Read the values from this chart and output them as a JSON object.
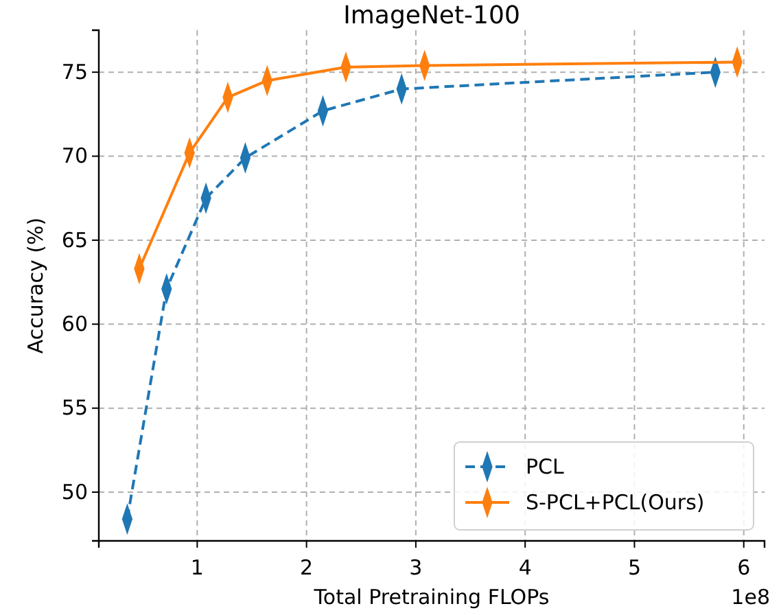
{
  "chart_data": {
    "type": "line",
    "title": "ImageNet-100",
    "xlabel": "Total Pretraining FLOPs",
    "ylabel": "Accuracy (%)",
    "annotations": [
      "1e8"
    ],
    "xlim": [
      0.1,
      6.19
    ],
    "xticks": [
      1,
      2,
      3,
      4,
      5,
      6
    ],
    "ylim": [
      47.1,
      77.5
    ],
    "yticks": [
      50,
      55,
      60,
      65,
      70,
      75
    ],
    "grid": true,
    "legend": "bottom right",
    "marker": "diamond",
    "series": [
      {
        "name": "PCL",
        "color": "#1f77b4",
        "line_style": "dashed",
        "x": [
          0.36,
          0.72,
          1.08,
          1.44,
          2.15,
          2.87,
          5.74
        ],
        "values": [
          48.4,
          62.1,
          67.5,
          69.9,
          72.7,
          74.0,
          75.0
        ]
      },
      {
        "name": "S-PCL+PCL(Ours)",
        "color": "#ff7f0e",
        "line_style": "solid",
        "x": [
          0.47,
          0.93,
          1.28,
          1.64,
          2.36,
          3.08,
          5.94
        ],
        "values": [
          63.3,
          70.2,
          73.5,
          74.5,
          75.3,
          75.4,
          75.6
        ]
      }
    ]
  }
}
